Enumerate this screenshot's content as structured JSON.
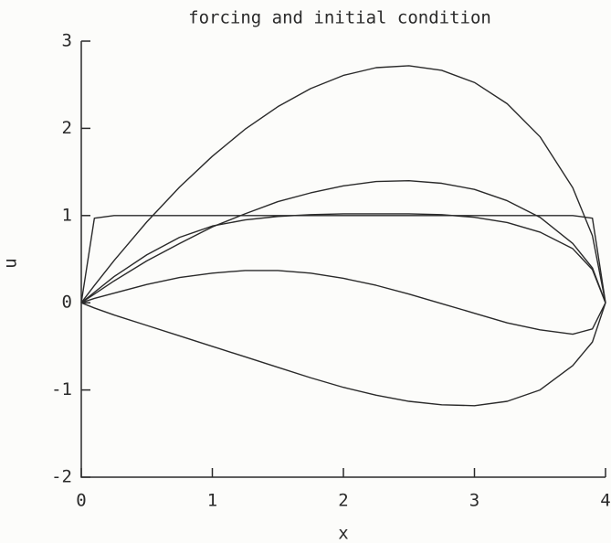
{
  "chart_data": {
    "type": "line",
    "title": "forcing and initial condition",
    "x_label": "x",
    "y_label": "u",
    "x": [
      0,
      0.1,
      0.25,
      0.5,
      0.75,
      1,
      1.25,
      1.5,
      1.75,
      2,
      2.25,
      2.5,
      2.75,
      3,
      3.25,
      3.5,
      3.75,
      3.9,
      4
    ],
    "series": [
      {
        "color": "#2a2a2a",
        "values": [
          0,
          0.198,
          0.484,
          0.927,
          1.327,
          1.68,
          1.99,
          2.249,
          2.456,
          2.607,
          2.696,
          2.718,
          2.665,
          2.526,
          2.282,
          1.904,
          1.319,
          0.769,
          0
        ]
      },
      {
        "color": "#2a2a2a",
        "values": [
          0,
          0.1,
          0.25,
          0.48,
          0.68,
          0.87,
          1.02,
          1.16,
          1.26,
          1.34,
          1.39,
          1.4,
          1.37,
          1.3,
          1.17,
          0.98,
          0.68,
          0.4,
          0
        ]
      },
      {
        "color": "#2a2a2a",
        "values": [
          0,
          0.12,
          0.3,
          0.55,
          0.75,
          0.88,
          0.95,
          0.99,
          1.01,
          1.02,
          1.02,
          1.02,
          1.01,
          0.98,
          0.92,
          0.81,
          0.62,
          0.38,
          0
        ]
      },
      {
        "color": "#2a2a2a",
        "values": [
          0,
          0.97,
          1,
          1,
          1,
          1,
          1,
          1,
          1,
          1,
          1,
          1,
          1,
          1,
          1,
          1,
          1,
          0.97,
          0
        ]
      },
      {
        "color": "#2a2a2a",
        "values": [
          0,
          0.05,
          0.11,
          0.21,
          0.29,
          0.34,
          0.37,
          0.37,
          0.34,
          0.28,
          0.2,
          0.1,
          -0.01,
          -0.12,
          -0.23,
          -0.31,
          -0.36,
          -0.3,
          0
        ]
      },
      {
        "color": "#2a2a2a",
        "values": [
          0,
          -0.06,
          -0.14,
          -0.26,
          -0.38,
          -0.5,
          -0.62,
          -0.74,
          -0.86,
          -0.97,
          -1.06,
          -1.13,
          -1.17,
          -1.18,
          -1.13,
          -1.0,
          -0.72,
          -0.45,
          0
        ]
      }
    ],
    "xlim": [
      0,
      4
    ],
    "ylim": [
      -2,
      3
    ],
    "xticks": [
      0,
      1,
      2,
      3,
      4
    ],
    "yticks": [
      -2,
      -1,
      0,
      1,
      2,
      3
    ],
    "grid": false
  }
}
